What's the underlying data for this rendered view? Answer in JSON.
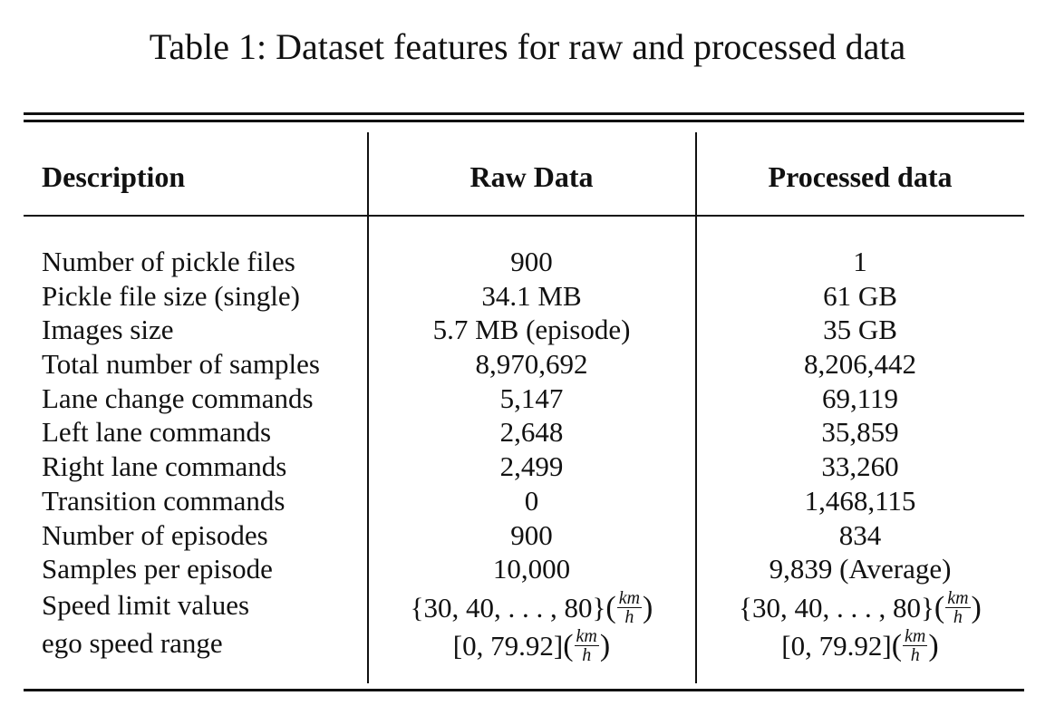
{
  "caption": "Table 1: Dataset features for raw and processed data",
  "headers": {
    "description": "Description",
    "raw": "Raw Data",
    "processed": "Processed data"
  },
  "rows": [
    {
      "description": "Number of pickle files",
      "raw": "900",
      "processed": "1"
    },
    {
      "description": "Pickle file size (single)",
      "raw": "34.1 MB",
      "processed": "61 GB"
    },
    {
      "description": "Images size",
      "raw": "5.7 MB (episode)",
      "processed": "35 GB"
    },
    {
      "description": "Total number of samples",
      "raw": "8,970,692",
      "processed": "8,206,442"
    },
    {
      "description": "Lane change commands",
      "raw": "5,147",
      "processed": "69,119"
    },
    {
      "description": "Left lane commands",
      "raw": "2,648",
      "processed": "35,859"
    },
    {
      "description": "Right lane commands",
      "raw": "2,499",
      "processed": "33,260"
    },
    {
      "description": "Transition commands",
      "raw": "0",
      "processed": "1,468,115"
    },
    {
      "description": "Number of episodes",
      "raw": "900",
      "processed": "834"
    },
    {
      "description": "Samples per episode",
      "raw": "10,000",
      "processed": "9,839 (Average)"
    }
  ],
  "math_rows": [
    {
      "description": "Speed limit values",
      "raw_value": "{30,  40, . . . ,  80}",
      "processed_value": "{30,  40, . . . ,  80}",
      "unit_numerator": "km",
      "unit_denominator": "h"
    },
    {
      "description": "ego speed range",
      "raw_value": "[0,  79.92]",
      "processed_value": "[0,  79.92]",
      "unit_numerator": "km",
      "unit_denominator": "h"
    }
  ]
}
